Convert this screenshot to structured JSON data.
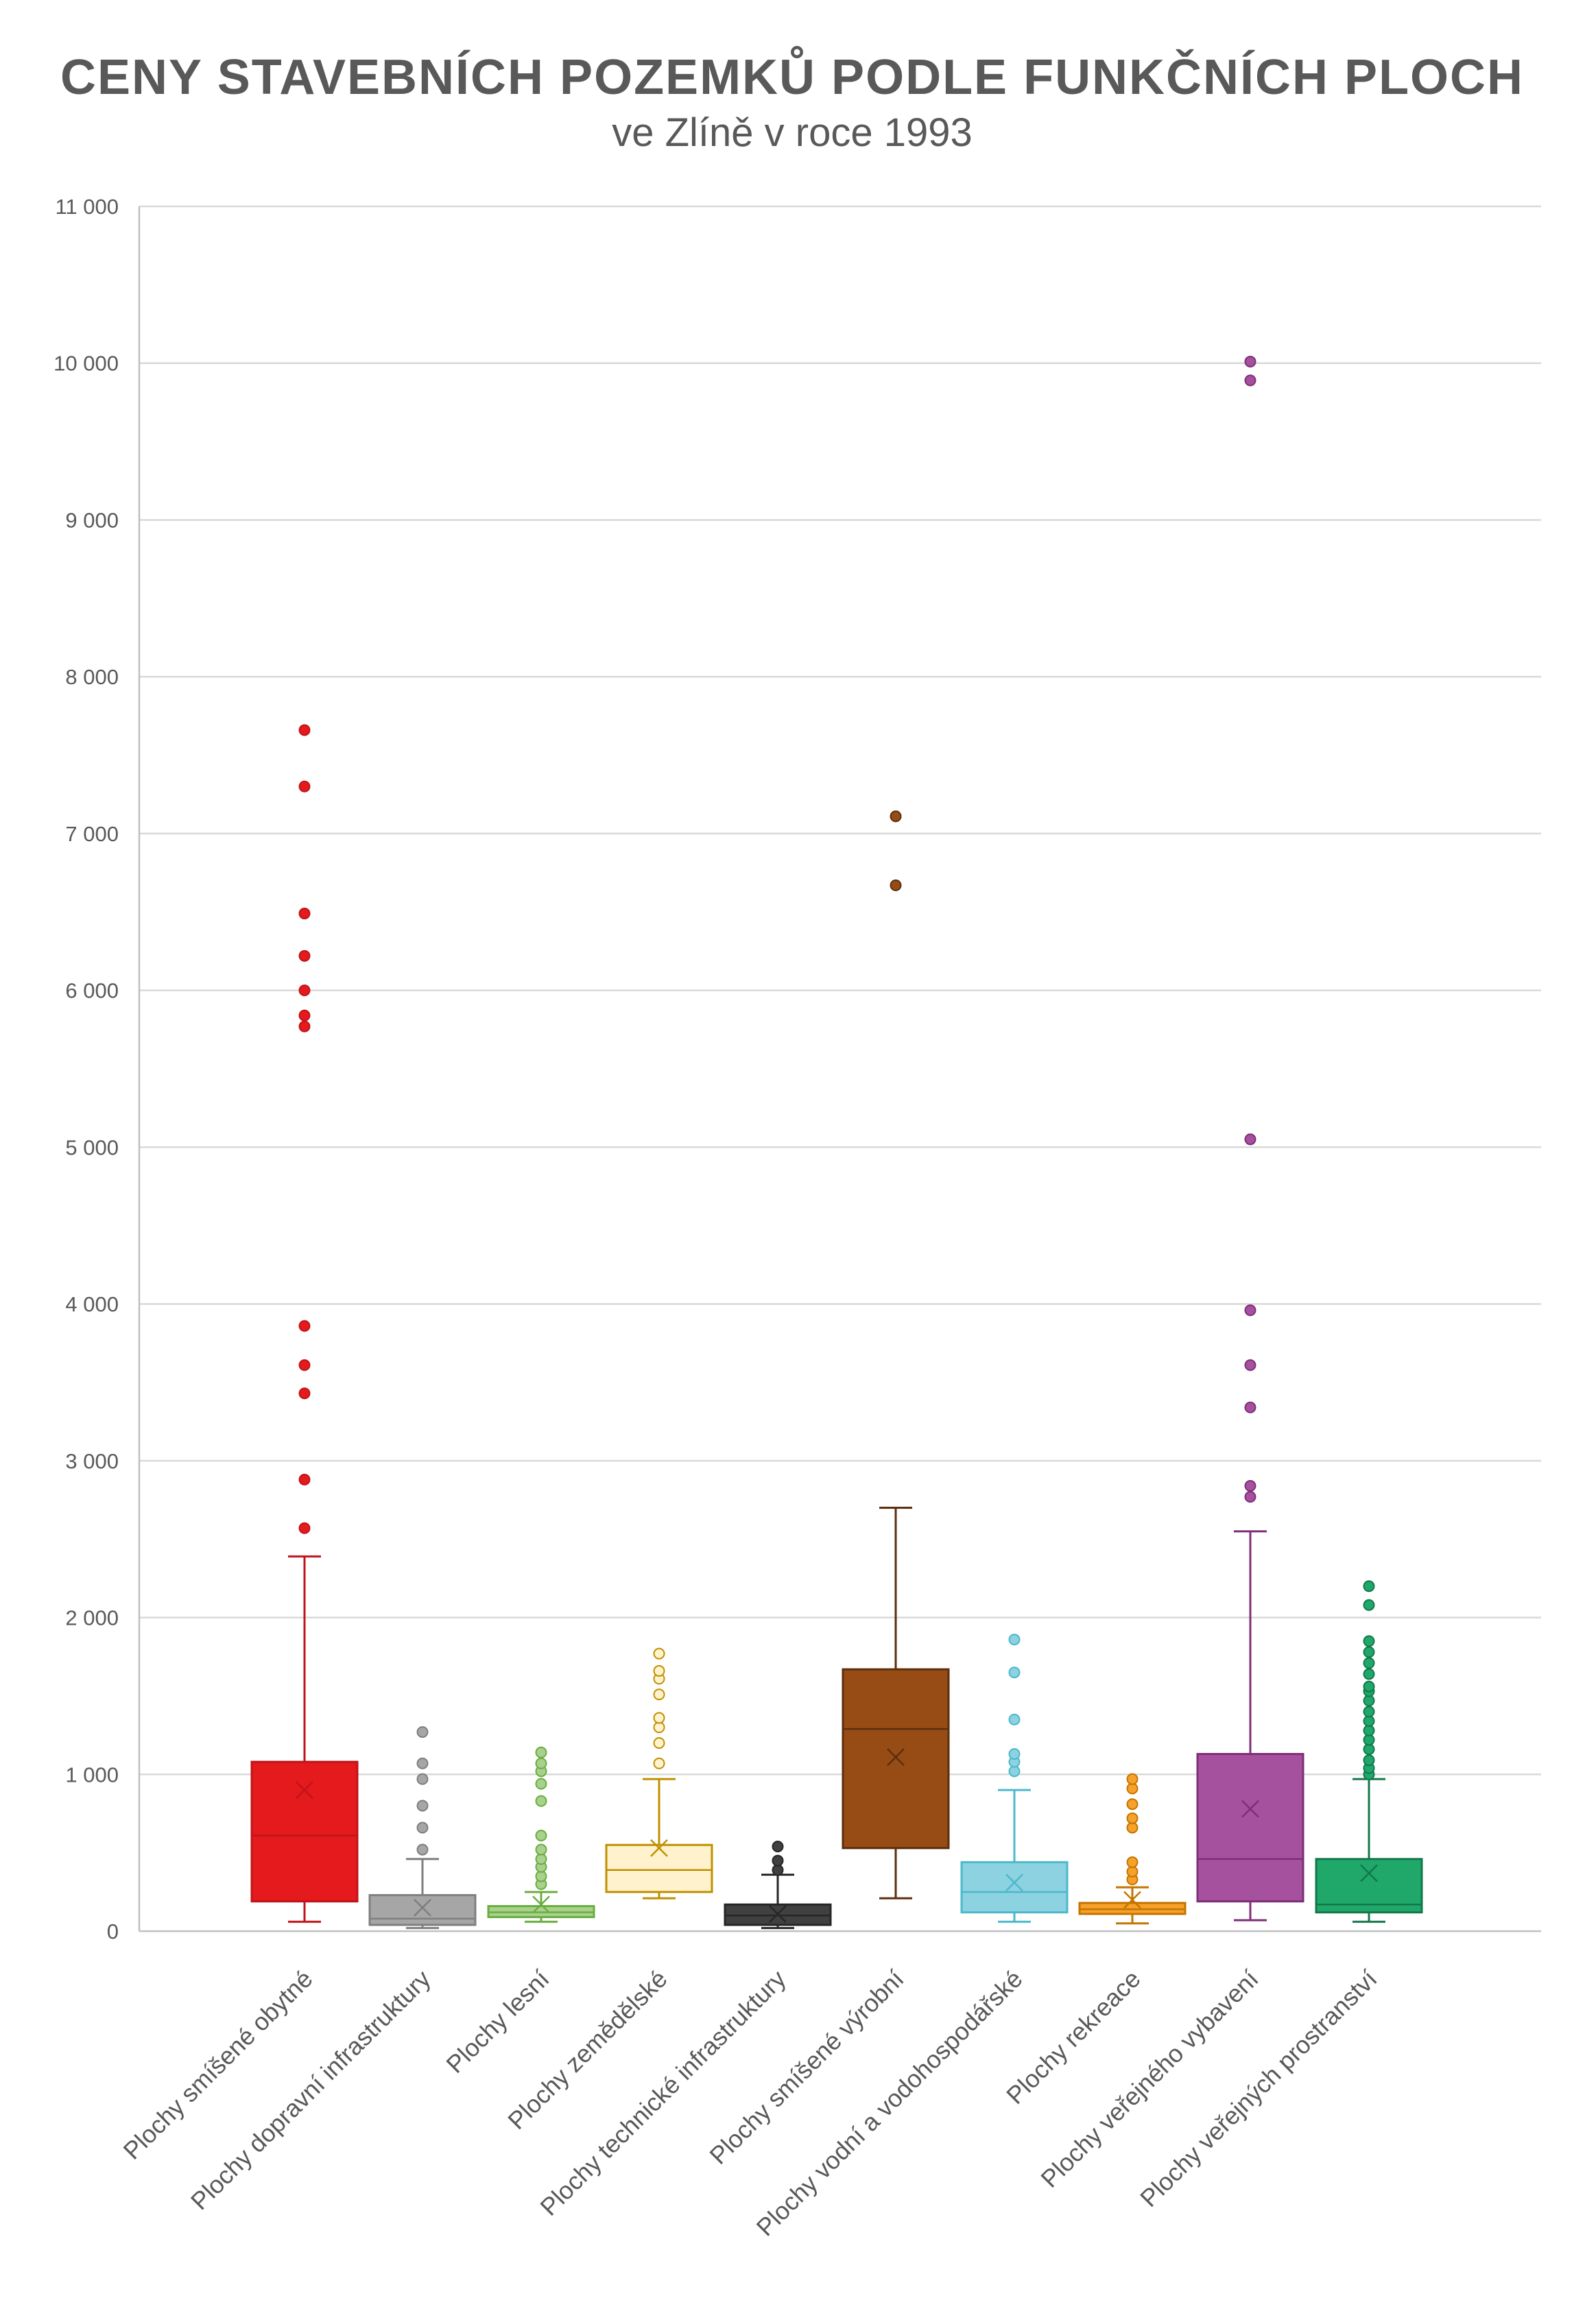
{
  "chart_data": {
    "type": "box",
    "title": "CENY STAVEBNÍCH POZEMKŮ PODLE FUNKČNÍCH PLOCH",
    "subtitle": "ve Zlíně v roce 1993",
    "xlabel": "",
    "ylabel": "",
    "ylim": [
      0,
      11000
    ],
    "yticks": [
      0,
      1000,
      2000,
      3000,
      4000,
      5000,
      6000,
      7000,
      8000,
      9000,
      10000,
      11000
    ],
    "ytick_labels": [
      "0",
      "1 000",
      "2 000",
      "3 000",
      "4 000",
      "5 000",
      "6 000",
      "7 000",
      "8 000",
      "9 000",
      "10 000",
      "11 000"
    ],
    "grid": true,
    "legend": "none",
    "series": [
      {
        "category": "Plochy smíšené obytné",
        "fill": "#e41a1c",
        "stroke": "#c0141a",
        "whisker_low": 60,
        "q1": 190,
        "median": 610,
        "q3": 1080,
        "whisker_high": 2390,
        "mean": 900,
        "outliers": [
          2570,
          2880,
          3430,
          3610,
          3860,
          5770,
          5840,
          6000,
          6220,
          6490,
          7300,
          7660
        ]
      },
      {
        "category": "Plochy dopravní infrastruktury",
        "fill": "#a6a6a6",
        "stroke": "#7f7f7f",
        "whisker_low": 20,
        "q1": 40,
        "median": 80,
        "q3": 230,
        "whisker_high": 460,
        "mean": 150,
        "outliers": [
          520,
          660,
          800,
          970,
          1070,
          1270
        ]
      },
      {
        "category": "Plochy lesní",
        "fill": "#a9d18e",
        "stroke": "#6aad3f",
        "whisker_low": 60,
        "q1": 90,
        "median": 120,
        "q3": 160,
        "whisker_high": 250,
        "mean": 170,
        "outliers": [
          300,
          350,
          410,
          460,
          520,
          610,
          830,
          940,
          1020,
          1070,
          1140
        ]
      },
      {
        "category": "Plochy zemědělské",
        "fill": "#fff2cc",
        "stroke": "#bf9000",
        "whisker_low": 210,
        "q1": 250,
        "median": 390,
        "q3": 550,
        "whisker_high": 970,
        "mean": 530,
        "outliers": [
          1070,
          1200,
          1300,
          1360,
          1510,
          1610,
          1660,
          1770
        ]
      },
      {
        "category": "Plochy technické infrastruktury",
        "fill": "#404040",
        "stroke": "#262626",
        "whisker_low": 20,
        "q1": 40,
        "median": 100,
        "q3": 170,
        "whisker_high": 360,
        "mean": 110,
        "outliers": [
          390,
          450,
          540
        ]
      },
      {
        "category": "Plochy smíšené výrobní",
        "fill": "#974c16",
        "stroke": "#5c2e0d",
        "whisker_low": 210,
        "q1": 530,
        "median": 1290,
        "q3": 1670,
        "whisker_high": 2700,
        "mean": 1110,
        "outliers": [
          6670,
          7110
        ]
      },
      {
        "category": "Plochy vodní a vodohospodářské",
        "fill": "#8cd2e0",
        "stroke": "#4bb8cc",
        "whisker_low": 60,
        "q1": 120,
        "median": 250,
        "q3": 440,
        "whisker_high": 900,
        "mean": 310,
        "outliers": [
          1020,
          1080,
          1130,
          1350,
          1650,
          1860
        ]
      },
      {
        "category": "Plochy rekreace",
        "fill": "#f5a12a",
        "stroke": "#c57400",
        "whisker_low": 50,
        "q1": 110,
        "median": 140,
        "q3": 180,
        "whisker_high": 280,
        "mean": 200,
        "outliers": [
          330,
          380,
          440,
          660,
          720,
          810,
          910,
          970
        ]
      },
      {
        "category": "Plochy veřejného vybavení",
        "fill": "#a5519d",
        "stroke": "#7e2f79",
        "whisker_low": 70,
        "q1": 190,
        "median": 460,
        "q3": 1130,
        "whisker_high": 2550,
        "mean": 780,
        "outliers": [
          2770,
          2840,
          3340,
          3610,
          3960,
          5050,
          9890,
          10010
        ]
      },
      {
        "category": "Plochy veřejných prostranství",
        "fill": "#20a86b",
        "stroke": "#13774a",
        "whisker_low": 60,
        "q1": 120,
        "median": 170,
        "q3": 460,
        "whisker_high": 970,
        "mean": 370,
        "outliers": [
          1000,
          1040,
          1090,
          1160,
          1220,
          1280,
          1340,
          1400,
          1470,
          1530,
          1560,
          1640,
          1710,
          1780,
          1850,
          2080,
          2200
        ]
      }
    ]
  }
}
